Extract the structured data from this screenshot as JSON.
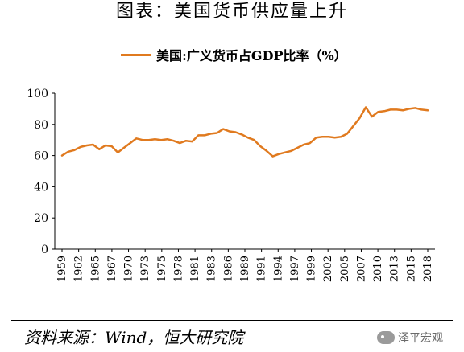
{
  "header": {
    "title": "图表：美国货币供应量上升"
  },
  "footer": {
    "source": "资料来源：Wind，恒大研究院",
    "watermark": "泽平宏观"
  },
  "colors": {
    "line": "#E07A1F",
    "axis": "#000000"
  },
  "chart_data": {
    "type": "line",
    "title": "",
    "xlabel": "",
    "ylabel": "",
    "ylim": [
      0,
      100
    ],
    "yticks": [
      0,
      20,
      40,
      60,
      80,
      100
    ],
    "xtick_labels": [
      "1959",
      "1962",
      "1965",
      "1967",
      "1970",
      "1973",
      "1975",
      "1978",
      "1981",
      "1983",
      "1986",
      "1989",
      "1991",
      "1994",
      "1997",
      "1999",
      "2002",
      "2005",
      "2007",
      "2010",
      "2013",
      "2015",
      "2018"
    ],
    "grid": false,
    "legend": "top-center",
    "series": [
      {
        "name": "美国:广义货币占GDP比率（%）",
        "x": [
          1959,
          1960,
          1961,
          1962,
          1963,
          1964,
          1965,
          1966,
          1967,
          1968,
          1969,
          1970,
          1971,
          1972,
          1973,
          1974,
          1975,
          1976,
          1977,
          1978,
          1979,
          1980,
          1981,
          1982,
          1983,
          1984,
          1985,
          1986,
          1987,
          1988,
          1989,
          1990,
          1991,
          1992,
          1993,
          1994,
          1995,
          1996,
          1997,
          1998,
          1999,
          2000,
          2001,
          2002,
          2003,
          2004,
          2005,
          2006,
          2007,
          2008,
          2009,
          2010,
          2011,
          2012,
          2013,
          2014,
          2015,
          2016,
          2017,
          2018
        ],
        "values": [
          60,
          62.5,
          63.5,
          65.5,
          66.5,
          67,
          64,
          66.5,
          66,
          62,
          65,
          68,
          71,
          70,
          70,
          70.5,
          70,
          70.5,
          69.5,
          68,
          69.5,
          69,
          73,
          73,
          74,
          74.5,
          77,
          75.5,
          75,
          73.5,
          71.5,
          70,
          66,
          63,
          59.5,
          61,
          62,
          63,
          65,
          67,
          68,
          71.5,
          72,
          72,
          71.5,
          72,
          74,
          79,
          84,
          91,
          85,
          88,
          88.5,
          89.5,
          89.5,
          89,
          90,
          90.5,
          89.5,
          89
        ]
      }
    ]
  }
}
